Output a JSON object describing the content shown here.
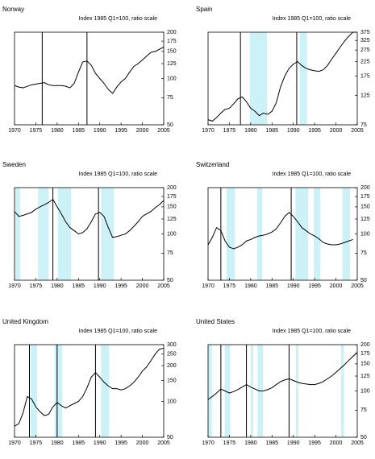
{
  "chart_data": [
    {
      "type": "line",
      "title": "Norway",
      "subtitle": "Index 1985 Q1=100, ratio scale",
      "log_scale": true,
      "color": "#000000",
      "shade_color": "#ccf2f8",
      "x": [
        1970,
        1971,
        1972,
        1973,
        1974,
        1975,
        1976,
        1977,
        1978,
        1979,
        1980,
        1981,
        1982,
        1983,
        1984,
        1985,
        1986,
        1987,
        1988,
        1989,
        1990,
        1991,
        1992,
        1993,
        1994,
        1995,
        1996,
        1997,
        1998,
        1999,
        2000,
        2001,
        2002,
        2003,
        2004,
        2005
      ],
      "values": [
        90,
        88,
        87,
        89,
        91,
        92,
        93,
        94,
        91,
        90,
        90,
        90,
        89,
        87,
        93,
        110,
        128,
        130,
        122,
        108,
        100,
        93,
        85,
        80,
        88,
        95,
        100,
        110,
        120,
        125,
        132,
        140,
        148,
        150,
        155,
        160
      ],
      "xlim": [
        1970,
        2005
      ],
      "xticks": [
        1970,
        1975,
        1980,
        1985,
        1990,
        1995,
        2000,
        2005
      ],
      "ylim": [
        50,
        200
      ],
      "yticks": [
        50,
        75,
        100,
        125,
        150,
        175,
        200
      ],
      "shaded_periods": [],
      "vertical_lines": [
        1976.5,
        1987
      ]
    },
    {
      "type": "line",
      "title": "Spain",
      "subtitle": "Index 1985 Q1=100, ratio scale",
      "log_scale": true,
      "color": "#000000",
      "shade_color": "#ccf2f8",
      "x": [
        1970,
        1971,
        1972,
        1973,
        1974,
        1975,
        1976,
        1977,
        1978,
        1979,
        1980,
        1981,
        1982,
        1983,
        1984,
        1985,
        1986,
        1987,
        1988,
        1989,
        1990,
        1991,
        1992,
        1993,
        1994,
        1995,
        1996,
        1997,
        1998,
        1999,
        2000,
        2001,
        2002,
        2003,
        2004,
        2005
      ],
      "values": [
        82,
        80,
        85,
        92,
        98,
        100,
        108,
        118,
        122,
        112,
        100,
        95,
        88,
        92,
        90,
        95,
        110,
        145,
        175,
        200,
        215,
        225,
        210,
        200,
        195,
        192,
        190,
        195,
        210,
        235,
        260,
        290,
        320,
        350,
        375,
        375
      ],
      "xlim": [
        1970,
        2005
      ],
      "xticks": [
        1970,
        1975,
        1980,
        1985,
        1990,
        1995,
        2000,
        2005
      ],
      "ylim": [
        75,
        375
      ],
      "yticks": [
        75,
        125,
        175,
        225,
        275,
        325,
        375
      ],
      "shaded_periods": [
        [
          1979.8,
          1983.8
        ],
        [
          1991.5,
          1993.2
        ]
      ],
      "vertical_lines": [
        1977.6,
        1990.8
      ]
    },
    {
      "type": "line",
      "title": "Sweden",
      "subtitle": "Index 1985 Q1=100, ratio scale",
      "log_scale": true,
      "color": "#000000",
      "shade_color": "#ccf2f8",
      "x": [
        1970,
        1971,
        1972,
        1973,
        1974,
        1975,
        1976,
        1977,
        1978,
        1979,
        1980,
        1981,
        1982,
        1983,
        1984,
        1985,
        1986,
        1987,
        1988,
        1989,
        1990,
        1991,
        1992,
        1993,
        1994,
        1995,
        1996,
        1997,
        1998,
        1999,
        2000,
        2001,
        2002,
        2003,
        2004,
        2005
      ],
      "values": [
        140,
        130,
        132,
        135,
        138,
        145,
        150,
        155,
        160,
        168,
        150,
        135,
        120,
        110,
        105,
        100,
        102,
        108,
        120,
        135,
        138,
        130,
        110,
        95,
        96,
        98,
        100,
        105,
        112,
        120,
        130,
        135,
        140,
        148,
        155,
        165
      ],
      "xlim": [
        1970,
        2005
      ],
      "xticks": [
        1970,
        1975,
        1980,
        1985,
        1990,
        1995,
        2000,
        2005
      ],
      "ylim": [
        50,
        200
      ],
      "yticks": [
        50,
        75,
        100,
        125,
        150,
        175,
        200
      ],
      "shaded_periods": [
        [
          1970.2,
          1971.3
        ],
        [
          1975.5,
          1978
        ],
        [
          1980.2,
          1983.3
        ],
        [
          1990.3,
          1993.3
        ]
      ],
      "vertical_lines": [
        1979,
        1989.7
      ]
    },
    {
      "type": "line",
      "title": "Switzerland",
      "subtitle": "Index 1985 Q1=100, ratio scale",
      "log_scale": true,
      "color": "#000000",
      "shade_color": "#ccf2f8",
      "x": [
        1970,
        1971,
        1972,
        1973,
        1974,
        1975,
        1976,
        1977,
        1978,
        1979,
        1980,
        1981,
        1982,
        1983,
        1984,
        1985,
        1986,
        1987,
        1988,
        1989,
        1990,
        1991,
        1992,
        1993,
        1994,
        1995,
        1996,
        1997,
        1998,
        1999,
        2000,
        2001,
        2002,
        2003,
        2004
      ],
      "values": [
        85,
        95,
        110,
        105,
        90,
        82,
        80,
        82,
        85,
        90,
        92,
        95,
        97,
        98,
        100,
        103,
        108,
        118,
        130,
        138,
        130,
        120,
        110,
        105,
        100,
        97,
        93,
        88,
        86,
        85,
        85,
        86,
        88,
        90,
        92
      ],
      "xlim": [
        1970,
        2005
      ],
      "xticks": [
        1970,
        1975,
        1980,
        1985,
        1990,
        1995,
        2000,
        2005
      ],
      "ylim": [
        50,
        200
      ],
      "yticks": [
        50,
        75,
        100,
        125,
        150,
        175,
        200
      ],
      "shaded_periods": [
        [
          1974.3,
          1976.3
        ],
        [
          1981.5,
          1982.7
        ],
        [
          1990.5,
          1993.5
        ],
        [
          1994.8,
          1996.3
        ],
        [
          2001.5,
          2003.3
        ]
      ],
      "vertical_lines": [
        1973,
        1989.5
      ]
    },
    {
      "type": "line",
      "title": "United Kingdom",
      "subtitle": "Index 1985 Q1=100, ratio scale",
      "log_scale": true,
      "color": "#000000",
      "shade_color": "#ccf2f8",
      "x": [
        1970,
        1971,
        1972,
        1973,
        1974,
        1975,
        1976,
        1977,
        1978,
        1979,
        1980,
        1981,
        1982,
        1983,
        1984,
        1985,
        1986,
        1987,
        1988,
        1989,
        1990,
        1991,
        1992,
        1993,
        1994,
        1995,
        1996,
        1997,
        1998,
        1999,
        2000,
        2001,
        2002,
        2003,
        2004,
        2005
      ],
      "values": [
        62,
        65,
        80,
        110,
        105,
        90,
        82,
        76,
        78,
        90,
        98,
        92,
        88,
        92,
        96,
        100,
        110,
        130,
        160,
        175,
        160,
        145,
        135,
        128,
        128,
        125,
        128,
        135,
        145,
        160,
        180,
        195,
        220,
        250,
        275,
        280
      ],
      "xlim": [
        1970,
        2005
      ],
      "xticks": [
        1970,
        1975,
        1980,
        1985,
        1990,
        1995,
        2000,
        2005
      ],
      "ylim": [
        50,
        300
      ],
      "yticks": [
        50,
        100,
        150,
        200,
        250,
        300
      ],
      "shaded_periods": [
        [
          1973.8,
          1975.3
        ],
        [
          1979.4,
          1981.2
        ],
        [
          1990.3,
          1992.2
        ]
      ],
      "vertical_lines": [
        1973.5,
        1980,
        1989
      ]
    },
    {
      "type": "line",
      "title": "United States",
      "subtitle": "Index 1985 Q1=100, ratio scale",
      "log_scale": true,
      "color": "#000000",
      "shade_color": "#ccf2f8",
      "x": [
        1970,
        1971,
        1972,
        1973,
        1974,
        1975,
        1976,
        1977,
        1978,
        1979,
        1980,
        1981,
        1982,
        1983,
        1984,
        1985,
        1986,
        1987,
        1988,
        1989,
        1990,
        1991,
        1992,
        1993,
        1994,
        1995,
        1996,
        1997,
        1998,
        1999,
        2000,
        2001,
        2002,
        2003,
        2004,
        2005
      ],
      "values": [
        88,
        92,
        97,
        103,
        100,
        97,
        99,
        102,
        106,
        110,
        106,
        103,
        100,
        100,
        102,
        105,
        110,
        115,
        118,
        120,
        117,
        114,
        112,
        111,
        110,
        110,
        112,
        115,
        120,
        125,
        132,
        140,
        148,
        158,
        168,
        178
      ],
      "xlim": [
        1970,
        2005
      ],
      "xticks": [
        1970,
        1975,
        1980,
        1985,
        1990,
        1995,
        2000,
        2005
      ],
      "ylim": [
        50,
        200
      ],
      "yticks": [
        50,
        75,
        100,
        125,
        150,
        175,
        200
      ],
      "shaded_periods": [
        [
          1970,
          1970.9
        ],
        [
          1973.9,
          1975.2
        ],
        [
          1980,
          1980.6
        ],
        [
          1981.6,
          1982.9
        ],
        [
          1990.6,
          1991.2
        ],
        [
          2001.2,
          2001.9
        ]
      ],
      "vertical_lines": [
        1973,
        1979,
        1989
      ]
    }
  ]
}
